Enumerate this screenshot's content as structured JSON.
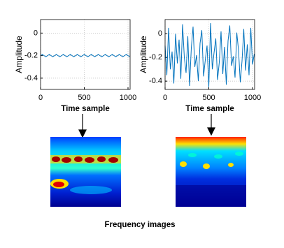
{
  "chart_data": [
    {
      "type": "line",
      "xlabel": "Time sample",
      "ylabel": "Amplitude",
      "color": "#0072bd",
      "grid": true,
      "xlim": [
        0,
        1024
      ],
      "xticks": [
        0,
        500,
        1000
      ],
      "ylim": [
        -0.5,
        0.12
      ],
      "yticks": [
        0,
        -0.2,
        -0.4
      ],
      "x": [
        0,
        20,
        40,
        60,
        80,
        100,
        120,
        140,
        160,
        180,
        200,
        220,
        240,
        260,
        280,
        300,
        320,
        340,
        360,
        380,
        400,
        420,
        440,
        460,
        480,
        500,
        520,
        540,
        560,
        580,
        600,
        620,
        640,
        660,
        680,
        700,
        720,
        740,
        760,
        780,
        800,
        820,
        840,
        860,
        880,
        900,
        920,
        940,
        960,
        980,
        1000,
        1020
      ],
      "values": [
        -0.2,
        -0.19,
        -0.2,
        -0.21,
        -0.2,
        -0.19,
        -0.2,
        -0.21,
        -0.2,
        -0.19,
        -0.2,
        -0.21,
        -0.2,
        -0.19,
        -0.2,
        -0.21,
        -0.2,
        -0.19,
        -0.2,
        -0.21,
        -0.2,
        -0.19,
        -0.2,
        -0.21,
        -0.2,
        -0.19,
        -0.2,
        -0.21,
        -0.2,
        -0.19,
        -0.2,
        -0.21,
        -0.2,
        -0.19,
        -0.2,
        -0.21,
        -0.2,
        -0.19,
        -0.2,
        -0.21,
        -0.2,
        -0.19,
        -0.2,
        -0.21,
        -0.2,
        -0.19,
        -0.2,
        -0.21,
        -0.2,
        -0.19,
        -0.2,
        -0.21
      ]
    },
    {
      "type": "line",
      "xlabel": "Time sample",
      "ylabel": "Amplitude",
      "color": "#0072bd",
      "grid": true,
      "xlim": [
        0,
        1024
      ],
      "xticks": [
        0,
        500,
        1000
      ],
      "ylim": [
        -0.47,
        0.12
      ],
      "yticks": [
        0,
        -0.2,
        -0.4
      ],
      "x": [
        0,
        20,
        40,
        60,
        80,
        100,
        120,
        140,
        160,
        180,
        200,
        220,
        240,
        260,
        280,
        300,
        320,
        340,
        360,
        380,
        400,
        420,
        440,
        460,
        480,
        500,
        520,
        540,
        560,
        580,
        600,
        620,
        640,
        660,
        680,
        700,
        720,
        740,
        760,
        780,
        800,
        820,
        840,
        860,
        880,
        900,
        920,
        940,
        960,
        980,
        1000,
        1020
      ],
      "values": [
        -0.1,
        -0.35,
        0.05,
        -0.3,
        -0.15,
        -0.42,
        0,
        -0.25,
        -0.05,
        -0.38,
        0.08,
        -0.2,
        -0.33,
        -0.02,
        -0.44,
        -0.12,
        0.06,
        -0.28,
        -0.18,
        -0.4,
        -0.08,
        0.03,
        -0.36,
        -0.22,
        -0.1,
        -0.45,
        0.09,
        -0.3,
        -0.16,
        -0.04,
        -0.39,
        -0.24,
        0.02,
        -0.34,
        -0.11,
        -0.43,
        -0.06,
        0.07,
        -0.27,
        -0.19,
        -0.37,
        0.01,
        -0.14,
        -0.41,
        -0.23,
        0.04,
        -0.31,
        -0.09,
        -0.35,
        0.05,
        -0.26,
        -0.17
      ]
    }
  ],
  "caption": "Frequency images"
}
